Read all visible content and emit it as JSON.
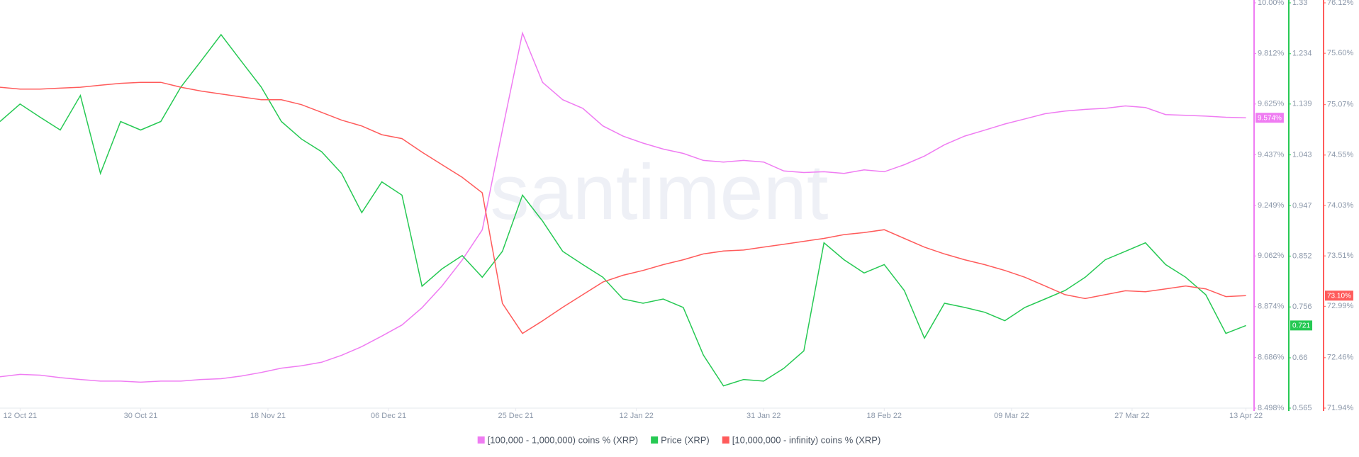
{
  "chart_data": {
    "type": "line",
    "watermark": "santiment",
    "x": [
      "2021-10-09",
      "2021-10-12",
      "2021-10-15",
      "2021-10-18",
      "2021-10-21",
      "2021-10-24",
      "2021-10-27",
      "2021-10-30",
      "2021-11-02",
      "2021-11-05",
      "2021-11-08",
      "2021-11-11",
      "2021-11-14",
      "2021-11-17",
      "2021-11-20",
      "2021-11-23",
      "2021-11-26",
      "2021-11-29",
      "2021-12-02",
      "2021-12-05",
      "2021-12-08",
      "2021-12-11",
      "2021-12-14",
      "2021-12-17",
      "2021-12-20",
      "2021-12-23",
      "2021-12-26",
      "2021-12-29",
      "2022-01-01",
      "2022-01-04",
      "2022-01-07",
      "2022-01-10",
      "2022-01-13",
      "2022-01-16",
      "2022-01-19",
      "2022-01-22",
      "2022-01-25",
      "2022-01-28",
      "2022-01-31",
      "2022-02-03",
      "2022-02-06",
      "2022-02-09",
      "2022-02-12",
      "2022-02-15",
      "2022-02-18",
      "2022-02-21",
      "2022-02-24",
      "2022-02-27",
      "2022-03-02",
      "2022-03-05",
      "2022-03-08",
      "2022-03-11",
      "2022-03-14",
      "2022-03-17",
      "2022-03-20",
      "2022-03-23",
      "2022-03-26",
      "2022-03-29",
      "2022-04-01",
      "2022-04-04",
      "2022-04-07",
      "2022-04-10",
      "2022-04-13"
    ],
    "xlim": [
      "2021-10-09",
      "2022-04-14"
    ],
    "xticks": [
      {
        "value": "2021-10-12",
        "label": "12 Oct 21"
      },
      {
        "value": "2021-10-30",
        "label": "30 Oct 21"
      },
      {
        "value": "2021-11-18",
        "label": "18 Nov 21"
      },
      {
        "value": "2021-12-06",
        "label": "06 Dec 21"
      },
      {
        "value": "2021-12-25",
        "label": "25 Dec 21"
      },
      {
        "value": "2022-01-12",
        "label": "12 Jan 22"
      },
      {
        "value": "2022-01-31",
        "label": "31 Jan 22"
      },
      {
        "value": "2022-02-18",
        "label": "18 Feb 22"
      },
      {
        "value": "2022-03-09",
        "label": "09 Mar 22"
      },
      {
        "value": "2022-03-27",
        "label": "27 Mar 22"
      },
      {
        "value": "2022-04-13",
        "label": "13 Apr 22"
      }
    ],
    "ylim": [
      8.498,
      10.0
    ],
    "yticks": [
      {
        "value": 8.498,
        "label": "8.498%"
      },
      {
        "value": 8.686,
        "label": "8.686%"
      },
      {
        "value": 8.874,
        "label": "8.874%"
      },
      {
        "value": 9.062,
        "label": "9.062%"
      },
      {
        "value": 9.249,
        "label": "9.249%"
      },
      {
        "value": 9.437,
        "label": "9.437%"
      },
      {
        "value": 9.625,
        "label": "9.625%"
      },
      {
        "value": 9.812,
        "label": "9.812%"
      },
      {
        "value": 10.0,
        "label": "10.00%"
      }
    ],
    "y2lim": [
      0.565,
      1.33
    ],
    "y2ticks": [
      0.565,
      0.66,
      0.756,
      0.852,
      0.947,
      1.043,
      1.139,
      1.234,
      1.33
    ],
    "y3lim": [
      71.94,
      76.12
    ],
    "y3ticks": [
      {
        "value": 71.94,
        "label": "71.94%"
      },
      {
        "value": 72.46,
        "label": "72.46%"
      },
      {
        "value": 72.99,
        "label": "72.99%"
      },
      {
        "value": 73.51,
        "label": "73.51%"
      },
      {
        "value": 74.03,
        "label": "74.03%"
      },
      {
        "value": 74.55,
        "label": "74.55%"
      },
      {
        "value": 75.07,
        "label": "75.07%"
      },
      {
        "value": 75.6,
        "label": "75.60%"
      },
      {
        "value": 76.12,
        "label": "76.12%"
      }
    ],
    "series": [
      {
        "name": "[100,000  - 1,000,000) coins % (XRP)",
        "color": "#ef7cf2",
        "axis": "y",
        "last_label": {
          "value": 9.574,
          "label": "9.574%"
        },
        "values": [
          8.614,
          8.623,
          8.62,
          8.611,
          8.604,
          8.598,
          8.598,
          8.594,
          8.598,
          8.598,
          8.604,
          8.607,
          8.617,
          8.63,
          8.646,
          8.655,
          8.668,
          8.694,
          8.726,
          8.765,
          8.806,
          8.87,
          8.951,
          9.047,
          9.159,
          9.528,
          9.888,
          9.705,
          9.641,
          9.609,
          9.544,
          9.506,
          9.48,
          9.458,
          9.442,
          9.416,
          9.41,
          9.416,
          9.41,
          9.377,
          9.371,
          9.374,
          9.368,
          9.381,
          9.374,
          9.4,
          9.432,
          9.474,
          9.506,
          9.528,
          9.551,
          9.57,
          9.589,
          9.599,
          9.605,
          9.609,
          9.618,
          9.612,
          9.586,
          9.583,
          9.58,
          9.576,
          9.574
        ]
      },
      {
        "name": "Price (XRP)",
        "color": "#26c953",
        "axis": "y2",
        "last_label": {
          "value": 0.721,
          "label": "0.721"
        },
        "values": [
          1.106,
          1.139,
          1.114,
          1.09,
          1.155,
          1.008,
          1.106,
          1.09,
          1.106,
          1.171,
          1.22,
          1.27,
          1.22,
          1.171,
          1.106,
          1.073,
          1.049,
          1.008,
          0.934,
          0.992,
          0.967,
          0.795,
          0.828,
          0.853,
          0.812,
          0.861,
          0.967,
          0.918,
          0.861,
          0.836,
          0.812,
          0.771,
          0.763,
          0.771,
          0.755,
          0.665,
          0.607,
          0.619,
          0.616,
          0.64,
          0.673,
          0.877,
          0.845,
          0.82,
          0.836,
          0.787,
          0.697,
          0.763,
          0.755,
          0.746,
          0.73,
          0.755,
          0.771,
          0.787,
          0.812,
          0.845,
          0.861,
          0.877,
          0.836,
          0.812,
          0.779,
          0.706,
          0.721
        ]
      },
      {
        "name": "[10,000,000 - infinity) coins % (XRP)",
        "color": "#ff5b5b",
        "axis": "y3",
        "last_label": {
          "value": 73.1,
          "label": "73.10%"
        },
        "values": [
          75.25,
          75.23,
          75.23,
          75.24,
          75.25,
          75.27,
          75.29,
          75.3,
          75.3,
          75.25,
          75.21,
          75.18,
          75.15,
          75.12,
          75.12,
          75.07,
          74.99,
          74.91,
          74.85,
          74.76,
          74.72,
          74.58,
          74.45,
          74.32,
          74.16,
          73.02,
          72.71,
          72.84,
          72.98,
          73.11,
          73.24,
          73.31,
          73.36,
          73.42,
          73.47,
          73.53,
          73.56,
          73.57,
          73.6,
          73.63,
          73.66,
          73.69,
          73.73,
          73.75,
          73.78,
          73.69,
          73.6,
          73.53,
          73.47,
          73.42,
          73.36,
          73.29,
          73.2,
          73.11,
          73.07,
          73.11,
          73.15,
          73.14,
          73.17,
          73.2,
          73.17,
          73.09,
          73.1
        ]
      }
    ]
  }
}
